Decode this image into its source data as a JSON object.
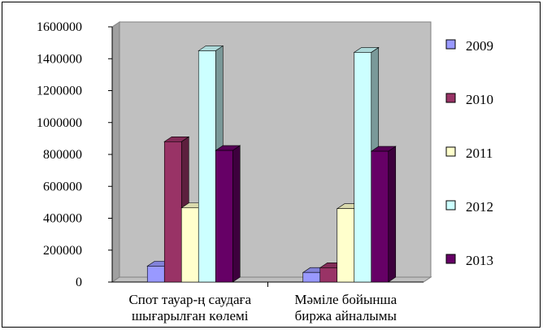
{
  "chart_data": {
    "type": "bar",
    "style": "3d-clustered-column",
    "categories": [
      [
        "Спот тауар-ң саудаға",
        "шығарылған көлемі"
      ],
      [
        "Мәміле бойынша",
        "биржа айналымы"
      ]
    ],
    "series": [
      {
        "name": "2009",
        "color": "#9999ff",
        "values": [
          100000,
          60000
        ]
      },
      {
        "name": "2010",
        "color": "#993366",
        "values": [
          880000,
          90000
        ]
      },
      {
        "name": "2011",
        "color": "#ffffcc",
        "values": [
          465000,
          460000
        ]
      },
      {
        "name": "2012",
        "color": "#ccffff",
        "values": [
          1450000,
          1440000
        ]
      },
      {
        "name": "2013",
        "color": "#660066",
        "values": [
          825000,
          820000
        ]
      }
    ],
    "ylim": [
      0,
      1600000
    ],
    "yticks": [
      0,
      200000,
      400000,
      600000,
      800000,
      1000000,
      1200000,
      1400000,
      1600000
    ],
    "grid": false,
    "wall_color": "#c0c0c0",
    "floor_color": "#c0c0c0",
    "legend": "right"
  }
}
